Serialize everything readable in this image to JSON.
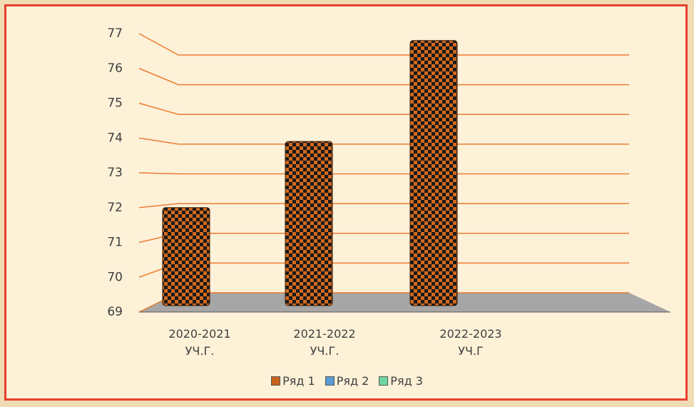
{
  "chart_data": {
    "type": "bar3d",
    "categories": [
      "2020-2021 УЧ.Г.",
      "2021-2022 УЧ.Г.",
      "2022-2023 УЧ.Г"
    ],
    "series": [
      {
        "name": "Ряд 1",
        "color": "#c9621c",
        "values": [
          72,
          73.9,
          76.8
        ]
      },
      {
        "name": "Ряд 2",
        "color": "#5b9bd5",
        "values": [
          null,
          null,
          null
        ]
      },
      {
        "name": "Ряд 3",
        "color": "#70d6a0",
        "values": [
          null,
          null,
          null
        ]
      }
    ],
    "ylim": [
      69,
      77
    ],
    "yticks": [
      69,
      70,
      71,
      72,
      73,
      74,
      75,
      76,
      77
    ],
    "grid": true,
    "legend": "bottom"
  }
}
